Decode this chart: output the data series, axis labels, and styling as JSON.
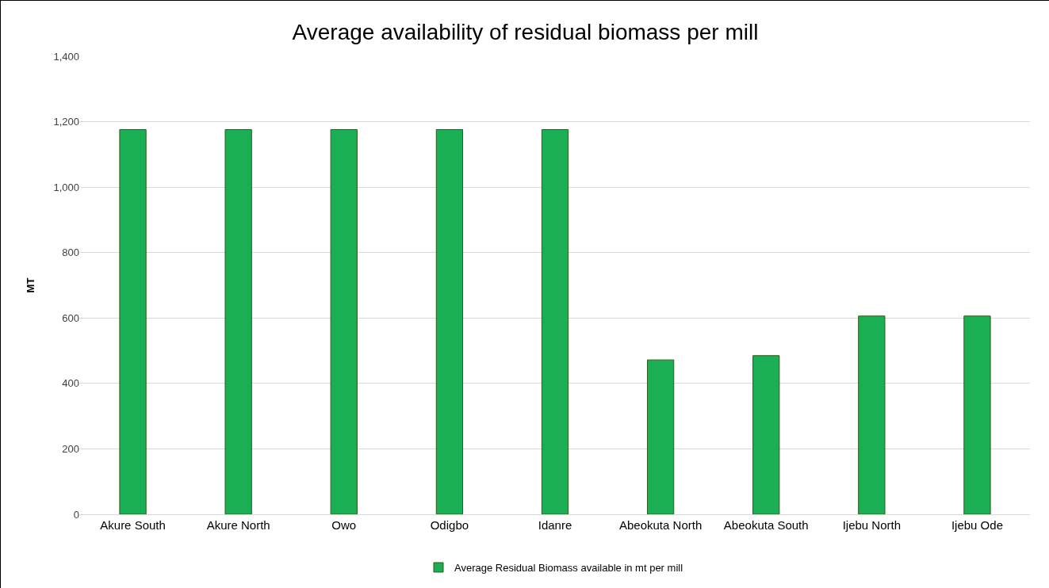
{
  "chart_data": {
    "type": "bar",
    "title": "Average availability of residual biomass per mill",
    "ylabel": "MT",
    "categories": [
      "Akure South",
      "Akure North",
      "Owo",
      "Odigbo",
      "Idanre",
      "Abeokuta North",
      "Abeokuta South",
      "Ijebu North",
      "Ijebu Ode"
    ],
    "series": [
      {
        "name": "Average Residual Biomass available in mt per mill",
        "color": "#1aaf54",
        "values": [
          1176,
          1176,
          1176,
          1176,
          1176,
          472,
          485,
          606,
          606
        ]
      }
    ],
    "ylim": [
      0,
      1400
    ],
    "yticks": [
      0,
      {
        "value": 200,
        "label": "200"
      },
      {
        "value": 400,
        "label": "400"
      },
      {
        "value": 600,
        "label": "600"
      },
      {
        "value": 800,
        "label": "800"
      },
      {
        "value": 1000,
        "label": "1,000"
      },
      {
        "value": 1200,
        "label": "1,200"
      },
      {
        "value": 1400,
        "label": "1,400"
      }
    ],
    "grid": "y",
    "legend": "bottom"
  }
}
